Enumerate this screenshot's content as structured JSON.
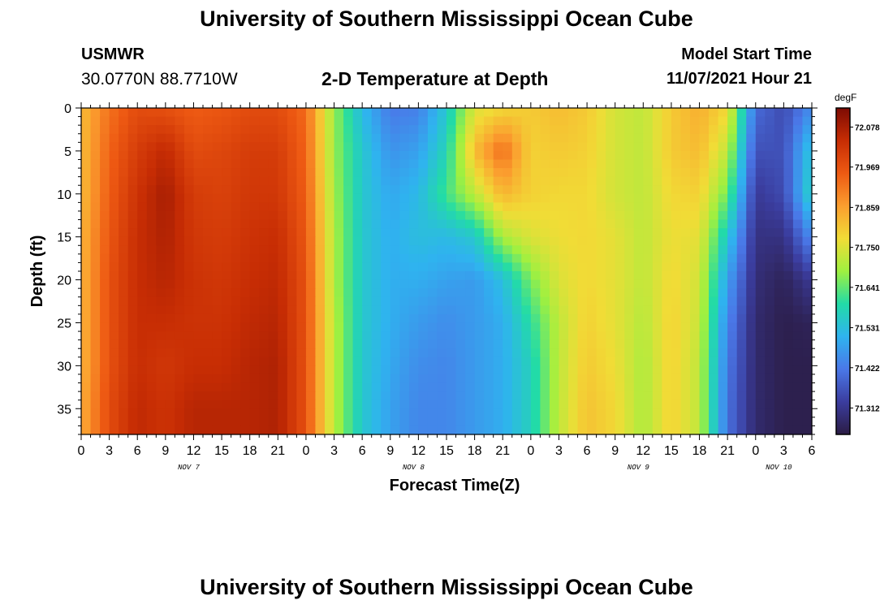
{
  "page": {
    "title": "University of Southern Mississippi Ocean Cube",
    "title_repeat": "University of Southern Mississippi Ocean Cube",
    "station": "USMWR",
    "coordinates": "30.0770N  88.7710W",
    "subtitle": "2-D Temperature at Depth",
    "model_start_label": "Model Start Time",
    "model_start_value": "11/07/2021 Hour 21"
  },
  "chart_data": {
    "type": "heatmap",
    "title": "2-D Temperature at Depth",
    "xlabel": "Forecast Time(Z)",
    "ylabel": "Depth (ft)",
    "x_tick_labels": [
      "0",
      "3",
      "6",
      "9",
      "12",
      "15",
      "18",
      "21",
      "0",
      "3",
      "6",
      "9",
      "12",
      "15",
      "18",
      "21",
      "0",
      "3",
      "6",
      "9",
      "12",
      "15",
      "18",
      "21",
      "0",
      "3",
      "6"
    ],
    "x_hours": [
      0,
      3,
      6,
      9,
      12,
      15,
      18,
      21,
      24,
      27,
      30,
      33,
      36,
      39,
      42,
      45,
      48,
      51,
      54,
      57,
      60,
      63,
      66,
      69,
      72,
      75,
      78
    ],
    "xlim": [
      0,
      78
    ],
    "day_labels": [
      {
        "label": "NOV 7",
        "hour": 12
      },
      {
        "label": "NOV 8",
        "hour": 36
      },
      {
        "label": "NOV 9",
        "hour": 60
      },
      {
        "label": "NOV 10",
        "hour": 75
      }
    ],
    "y_ticks": [
      0,
      5,
      10,
      15,
      20,
      25,
      30,
      35
    ],
    "ylim": [
      0,
      38
    ],
    "y_inverted": true,
    "colorbar": {
      "unit": "degF",
      "tick_labels": [
        "72.078",
        "71.969",
        "71.859",
        "71.750",
        "71.641",
        "71.531",
        "71.422",
        "71.312"
      ],
      "range": [
        71.24,
        72.13
      ],
      "colors": [
        "#2b1c44",
        "#3b3d9f",
        "#4a78e8",
        "#2fb3ef",
        "#22dba7",
        "#9ff040",
        "#f1dc36",
        "#fb9e2f",
        "#ee5a13",
        "#c72d04",
        "#7d0b03"
      ]
    },
    "grid": false,
    "legend": "colorbar-right",
    "depths": [
      0,
      5,
      10,
      15,
      20,
      25,
      30,
      35,
      38
    ],
    "hours": [
      0,
      3,
      6,
      9,
      12,
      15,
      18,
      21,
      24,
      27,
      30,
      33,
      36,
      39,
      42,
      45,
      48,
      51,
      54,
      57,
      60,
      63,
      66,
      69,
      72,
      75,
      78
    ],
    "values": [
      [
        71.82,
        71.92,
        71.98,
        71.97,
        71.95,
        71.96,
        71.98,
        71.98,
        71.93,
        71.68,
        71.52,
        71.42,
        71.43,
        71.55,
        71.75,
        71.78,
        71.8,
        71.82,
        71.8,
        71.74,
        71.72,
        71.8,
        71.84,
        71.78,
        71.4,
        71.35,
        71.45
      ],
      [
        71.82,
        71.94,
        72.01,
        72.05,
        71.98,
        71.99,
        72.01,
        72.01,
        71.94,
        71.68,
        71.55,
        71.46,
        71.48,
        71.58,
        71.82,
        71.93,
        71.79,
        71.8,
        71.79,
        71.74,
        71.72,
        71.8,
        71.82,
        71.72,
        71.36,
        71.36,
        71.55
      ],
      [
        71.82,
        71.95,
        72.03,
        72.08,
        72.01,
        72.0,
        72.02,
        72.02,
        71.95,
        71.69,
        71.55,
        71.49,
        71.52,
        71.62,
        71.72,
        71.83,
        71.79,
        71.78,
        71.78,
        71.74,
        71.72,
        71.78,
        71.79,
        71.65,
        71.32,
        71.35,
        71.58
      ],
      [
        71.83,
        71.96,
        72.04,
        72.07,
        72.02,
        72.01,
        72.03,
        72.04,
        71.96,
        71.7,
        71.55,
        71.5,
        71.53,
        71.52,
        71.55,
        71.7,
        71.75,
        71.77,
        71.78,
        71.76,
        71.72,
        71.77,
        71.76,
        71.55,
        71.3,
        71.3,
        71.45
      ],
      [
        71.83,
        71.97,
        72.04,
        72.06,
        72.03,
        72.02,
        72.04,
        72.05,
        71.97,
        71.7,
        71.55,
        71.5,
        71.5,
        71.48,
        71.47,
        71.53,
        71.66,
        71.75,
        71.78,
        71.76,
        71.72,
        71.78,
        71.74,
        71.48,
        71.29,
        71.26,
        71.32
      ],
      [
        71.83,
        71.97,
        72.04,
        72.04,
        72.03,
        72.03,
        72.05,
        72.06,
        71.97,
        71.71,
        71.55,
        71.5,
        71.47,
        71.45,
        71.47,
        71.5,
        71.6,
        71.72,
        71.79,
        71.76,
        71.71,
        71.79,
        71.73,
        71.44,
        71.28,
        71.25,
        71.26
      ],
      [
        71.83,
        71.97,
        72.04,
        72.02,
        72.04,
        72.04,
        72.06,
        72.07,
        71.97,
        71.71,
        71.55,
        71.49,
        71.45,
        71.44,
        71.47,
        71.5,
        71.57,
        71.72,
        71.8,
        71.77,
        71.7,
        71.79,
        71.72,
        71.42,
        71.28,
        71.25,
        71.25
      ],
      [
        71.84,
        71.98,
        72.05,
        72.03,
        72.06,
        72.06,
        72.06,
        72.07,
        71.97,
        71.71,
        71.55,
        71.48,
        71.44,
        71.44,
        71.47,
        71.5,
        71.57,
        71.72,
        71.81,
        71.78,
        71.7,
        71.79,
        71.72,
        71.41,
        71.28,
        71.25,
        71.25
      ],
      [
        71.84,
        71.98,
        72.05,
        72.03,
        72.06,
        72.06,
        72.06,
        72.07,
        71.97,
        71.71,
        71.55,
        71.48,
        71.44,
        71.44,
        71.47,
        71.5,
        71.57,
        71.72,
        71.81,
        71.78,
        71.7,
        71.79,
        71.72,
        71.41,
        71.28,
        71.25,
        71.25
      ]
    ]
  }
}
